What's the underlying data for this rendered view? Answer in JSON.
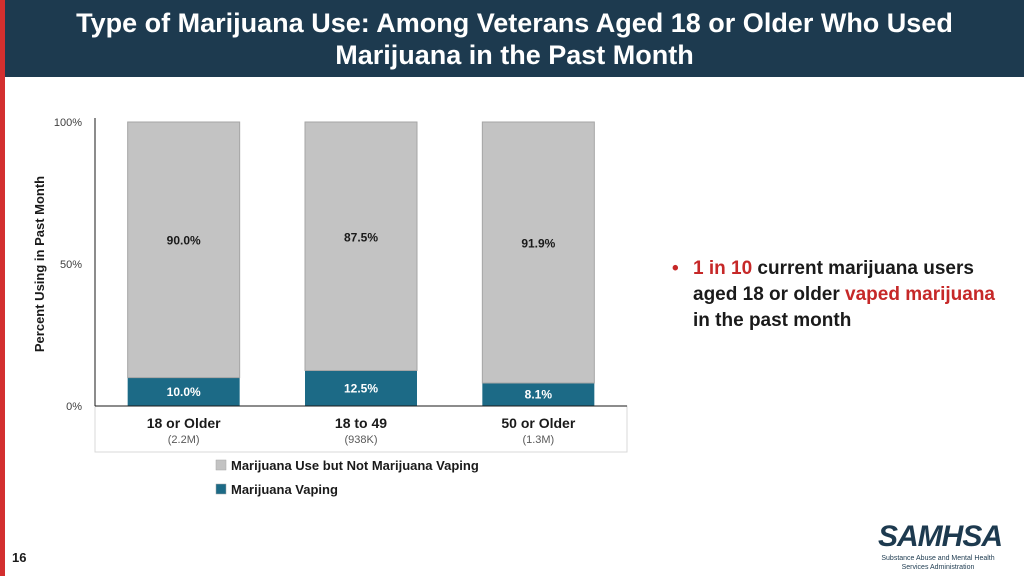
{
  "slide": {
    "title_line1": "Type of Marijuana Use: Among Veterans Aged 18 or Older Who Used",
    "title_line2": "Marijuana in the Past Month",
    "page_number": "16",
    "colors": {
      "header_bg": "#1d3a4f",
      "accent_red": "#d32f2f"
    }
  },
  "bullet": {
    "highlight": "1 in 10",
    "text1": " current marijuana users aged 18 or older ",
    "highlight2": "vaped marijuana",
    "text2": " in the past month"
  },
  "logo": {
    "name": "SAMHSA",
    "subtitle_line1": "Substance Abuse and Mental Health",
    "subtitle_line2": "Services Administration"
  },
  "chart_data": {
    "type": "bar",
    "stacked": true,
    "ylabel": "Percent Using in Past Month",
    "ylim": [
      0,
      100
    ],
    "yticks": [
      0,
      50,
      100
    ],
    "ytick_labels": [
      "0%",
      "50%",
      "100%"
    ],
    "categories": [
      "18 or Older",
      "18 to 49",
      "50 or Older"
    ],
    "category_sublabels": [
      "(2.2M)",
      "(938K)",
      "(1.3M)"
    ],
    "series": [
      {
        "name": "Marijuana Vaping",
        "color": "#1c6a86",
        "label_color": "#ffffff",
        "values": [
          10.0,
          12.5,
          8.1
        ],
        "labels": [
          "10.0%",
          "12.5%",
          "8.1%"
        ]
      },
      {
        "name": "Marijuana Use but Not Marijuana Vaping",
        "color": "#c3c3c3",
        "label_color": "#1a1a1a",
        "values": [
          90.0,
          87.5,
          91.9
        ],
        "labels": [
          "90.0%",
          "87.5%",
          "91.9%"
        ]
      }
    ],
    "legend_order": [
      1,
      0
    ],
    "legend_position": "bottom-left"
  }
}
